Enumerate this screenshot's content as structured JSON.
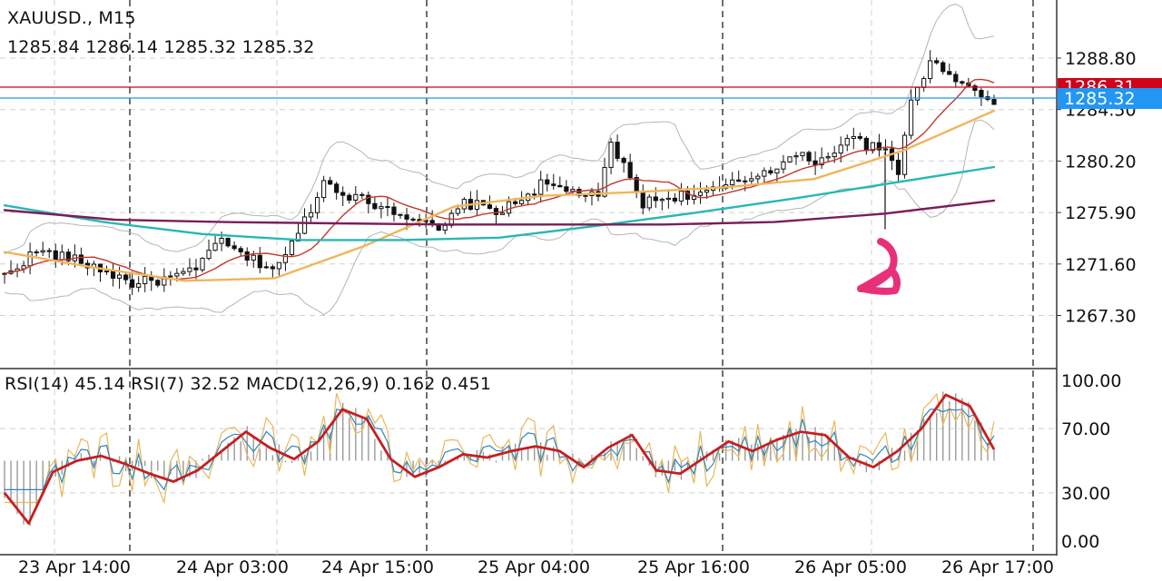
{
  "header": {
    "symbol_timeframe": "XAUUSD., M15",
    "ohlc": "1285.84 1286.14 1285.32 1285.32"
  },
  "indicator_header": "RSI(14) 45.14 RSI(7) 32.52 MACD(12,26,9) 0.162 0.451",
  "colors": {
    "background": "#ffffff",
    "grid": "#d0d0d0",
    "candle": "#111111",
    "ma_fast": "#c0392b",
    "ma_medium": "#f0b55a",
    "ma_slow": "#28b7b4",
    "ma_slowest": "#7a1e5a",
    "bollinger": "#b5b5b5",
    "ask_line": "#d0021b",
    "bid_line": "#2196f3",
    "rsi14": "#2e86c1",
    "rsi7": "#e8b85a",
    "macd_signal": "#c81e1e",
    "macd_hist": "#9a9a9a",
    "annotation": "#e8307a"
  },
  "chart_data": [
    {
      "type": "candlestick",
      "title": "XAUUSD., M15",
      "y_ticks": [
        1288.8,
        1284.5,
        1280.2,
        1275.9,
        1271.6,
        1267.3
      ],
      "y_tick_labels": [
        "1288.80",
        "1284.50",
        "1280.20",
        "1275.90",
        "1271.60",
        "1267.30"
      ],
      "x_tick_labels": [
        "23 Apr 14:00",
        "24 Apr 03:00",
        "24 Apr 15:00",
        "25 Apr 04:00",
        "25 Apr 16:00",
        "26 Apr 05:00",
        "26 Apr 17:00"
      ],
      "ask_price": "1286.31",
      "bid_price": "1285.32",
      "last_ohlc": {
        "open": 1285.84,
        "high": 1286.14,
        "low": 1285.32,
        "close": 1285.32
      },
      "close_path": [
        [
          0,
          1270.6
        ],
        [
          5,
          1272.7
        ],
        [
          10,
          1272.1
        ],
        [
          15,
          1271.2
        ],
        [
          20,
          1270.0
        ],
        [
          25,
          1270.3
        ],
        [
          30,
          1271.0
        ],
        [
          33,
          1273.6
        ],
        [
          38,
          1272.1
        ],
        [
          42,
          1271.3
        ],
        [
          44,
          1272.2
        ],
        [
          48,
          1276.3
        ],
        [
          50,
          1278.5
        ],
        [
          55,
          1277.1
        ],
        [
          60,
          1276.3
        ],
        [
          65,
          1275.3
        ],
        [
          68,
          1274.2
        ],
        [
          72,
          1276.7
        ],
        [
          78,
          1276.0
        ],
        [
          84,
          1278.2
        ],
        [
          90,
          1277.6
        ],
        [
          93,
          1277.0
        ],
        [
          95,
          1281.7
        ],
        [
          100,
          1276.7
        ],
        [
          105,
          1277.3
        ],
        [
          110,
          1277.5
        ],
        [
          115,
          1278.4
        ],
        [
          120,
          1279.6
        ],
        [
          124,
          1280.6
        ],
        [
          128,
          1280.2
        ],
        [
          132,
          1282.2
        ],
        [
          136,
          1281.3
        ],
        [
          138,
          1280.9
        ],
        [
          140,
          1279.1
        ],
        [
          142,
          1285.6
        ],
        [
          145,
          1288.3
        ],
        [
          148,
          1287.8
        ],
        [
          150,
          1286.6
        ],
        [
          155,
          1285.32
        ]
      ],
      "moving_averages": [
        {
          "name": "ma_medium",
          "values": [
            1272.6,
            1271.3,
            1270.2,
            1270.4,
            1273.1,
            1276.4,
            1277.3,
            1277.6,
            1278.0,
            1278.7,
            1281.1,
            1284.4
          ]
        },
        {
          "name": "ma_slow",
          "values": [
            1276.5,
            1275.1,
            1274.1,
            1273.6,
            1273.6,
            1273.8,
            1274.8,
            1275.9,
            1277.1,
            1278.4,
            1279.7
          ]
        },
        {
          "name": "ma_slowest",
          "values": [
            1276.1,
            1275.3,
            1275.1,
            1275.0,
            1274.9,
            1274.9,
            1274.9,
            1275.1,
            1275.8,
            1276.9
          ]
        }
      ]
    },
    {
      "type": "line",
      "title": "RSI(14) 45.14 RSI(7) 32.52 MACD(12,26,9) 0.162 0.451",
      "y_ticks": [
        100,
        70,
        30,
        0
      ],
      "y_tick_labels": [
        "100.00",
        "70.00",
        "30.00",
        "0.00"
      ],
      "ylim": [
        0,
        100
      ],
      "series": [
        {
          "name": "RSI(14)",
          "last": 45.14
        },
        {
          "name": "RSI(7)",
          "last": 32.52
        },
        {
          "name": "MACD(12,26,9)",
          "values": [
            0.162,
            0.451
          ]
        }
      ],
      "macd_signal_path": [
        [
          0,
          30
        ],
        [
          5,
          11
        ],
        [
          10,
          43
        ],
        [
          15,
          50
        ],
        [
          20,
          53
        ],
        [
          25,
          48
        ],
        [
          30,
          42
        ],
        [
          35,
          37
        ],
        [
          40,
          44
        ],
        [
          45,
          56
        ],
        [
          50,
          68
        ],
        [
          55,
          58
        ],
        [
          60,
          51
        ],
        [
          65,
          62
        ],
        [
          70,
          82
        ],
        [
          75,
          76
        ],
        [
          80,
          51
        ],
        [
          85,
          40
        ],
        [
          90,
          46
        ],
        [
          95,
          54
        ],
        [
          100,
          52
        ],
        [
          105,
          56
        ],
        [
          110,
          59
        ],
        [
          115,
          56
        ],
        [
          120,
          46
        ],
        [
          125,
          58
        ],
        [
          130,
          66
        ],
        [
          135,
          44
        ],
        [
          140,
          42
        ],
        [
          145,
          52
        ],
        [
          150,
          62
        ],
        [
          155,
          56
        ],
        [
          160,
          63
        ],
        [
          165,
          68
        ],
        [
          170,
          66
        ],
        [
          175,
          52
        ],
        [
          180,
          46
        ],
        [
          185,
          56
        ],
        [
          190,
          70
        ],
        [
          195,
          91
        ],
        [
          200,
          84
        ],
        [
          205,
          57
        ]
      ]
    }
  ]
}
